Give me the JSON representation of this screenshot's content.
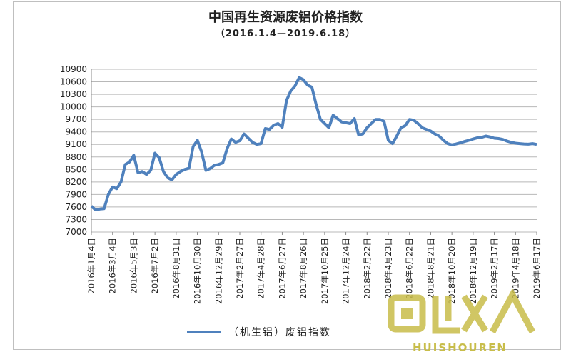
{
  "chart_data": {
    "type": "line",
    "title": "中国再生资源废铝价格指数",
    "subtitle": "（2016.1.4—2019.6.18）",
    "xlabel": "",
    "ylabel": "",
    "ylim": [
      7000,
      10900
    ],
    "yticks": [
      7000,
      7300,
      7600,
      7900,
      8200,
      8500,
      8800,
      9100,
      9400,
      9700,
      10000,
      10300,
      10600,
      10900
    ],
    "xticks": [
      "2016年1月4日",
      "2016年3月4日",
      "2016年5月3日",
      "2016年7月2日",
      "2016年8月31日",
      "2016年10月30日",
      "2016年12月29日",
      "2017年2月27日",
      "2017年4月28日",
      "2017年6月27日",
      "2017年8月26日",
      "2017年10月25日",
      "2017年12月24日",
      "2018年2月22日",
      "2018年4月23日",
      "2018年6月22日",
      "2018年8月21日",
      "2018年10月20日",
      "2018年12月19日",
      "2019年2月17日",
      "2019年4月18日",
      "2019年6月17日"
    ],
    "grid": true,
    "legend": "bottom",
    "series": [
      {
        "name": "（机生铝）废铝指数",
        "color": "#4f81bd",
        "x": [
          0,
          0.2,
          0.4,
          0.6,
          0.8,
          1.0,
          1.2,
          1.4,
          1.6,
          1.8,
          2.0,
          2.2,
          2.4,
          2.6,
          2.8,
          3.0,
          3.2,
          3.4,
          3.6,
          3.8,
          4.0,
          4.2,
          4.4,
          4.6,
          4.8,
          5.0,
          5.2,
          5.4,
          5.6,
          5.8,
          6.0,
          6.2,
          6.4,
          6.6,
          6.8,
          7.0,
          7.2,
          7.4,
          7.6,
          7.8,
          8.0,
          8.2,
          8.4,
          8.6,
          8.8,
          9.0,
          9.2,
          9.4,
          9.6,
          9.8,
          10.0,
          10.2,
          10.4,
          10.6,
          10.8,
          11.0,
          11.2,
          11.4,
          11.6,
          11.8,
          12.0,
          12.2,
          12.4,
          12.6,
          12.8,
          13.0,
          13.2,
          13.4,
          13.6,
          13.8,
          14.0,
          14.2,
          14.4,
          14.6,
          14.8,
          15.0,
          15.2,
          15.4,
          15.6,
          15.8,
          16.0,
          16.2,
          16.4,
          16.6,
          16.8,
          17.0,
          17.2,
          17.4,
          17.6,
          17.8,
          18.0,
          18.2,
          18.4,
          18.6,
          18.8,
          19.0,
          19.2,
          19.4,
          19.6,
          19.8,
          20.0,
          20.2,
          20.4,
          20.6,
          20.8,
          21.0
        ],
        "values": [
          7620,
          7530,
          7550,
          7560,
          7900,
          8080,
          8040,
          8200,
          8620,
          8680,
          8840,
          8420,
          8450,
          8380,
          8480,
          8890,
          8780,
          8450,
          8300,
          8250,
          8380,
          8450,
          8500,
          8530,
          9050,
          9200,
          8920,
          8480,
          8520,
          8600,
          8620,
          8660,
          9000,
          9230,
          9150,
          9190,
          9350,
          9250,
          9150,
          9100,
          9120,
          9480,
          9460,
          9560,
          9600,
          9510,
          10150,
          10380,
          10500,
          10700,
          10650,
          10520,
          10470,
          10050,
          9700,
          9600,
          9500,
          9800,
          9720,
          9640,
          9620,
          9600,
          9720,
          9330,
          9350,
          9500,
          9600,
          9700,
          9700,
          9650,
          9200,
          9120,
          9300,
          9500,
          9550,
          9700,
          9680,
          9600,
          9500,
          9460,
          9420,
          9350,
          9300,
          9200,
          9120,
          9090,
          9110,
          9140,
          9170,
          9200,
          9230,
          9260,
          9270,
          9300,
          9280,
          9250,
          9240,
          9220,
          9180,
          9150,
          9130,
          9120,
          9110,
          9105,
          9120,
          9100
        ]
      }
    ]
  },
  "watermark": {
    "text": "HUISHOUREN",
    "logo": "recycle-logo"
  }
}
